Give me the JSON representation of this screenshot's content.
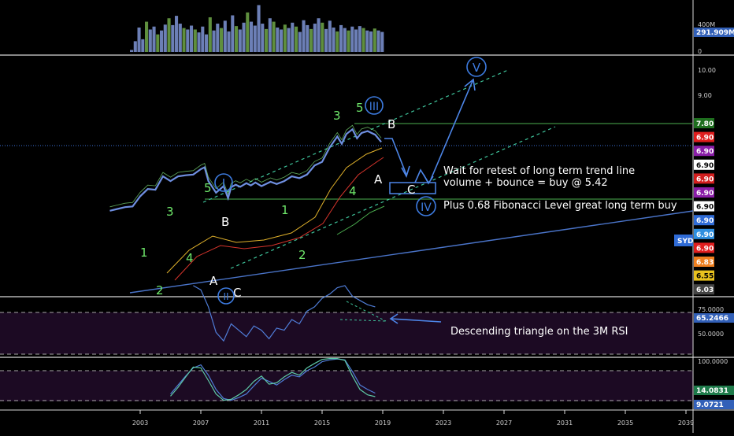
{
  "chart_data": [
    {
      "type": "bar",
      "panel": "volume",
      "scale_labels": [
        "400M",
        "291.909M",
        "0"
      ],
      "current_value_label": "291.909M",
      "values": [
        0.04,
        0.22,
        0.5,
        0.26,
        0.62,
        0.46,
        0.52,
        0.36,
        0.44,
        0.56,
        0.69,
        0.55,
        0.74,
        0.58,
        0.49,
        0.46,
        0.54,
        0.46,
        0.4,
        0.52,
        0.36,
        0.71,
        0.44,
        0.58,
        0.49,
        0.64,
        0.42,
        0.75,
        0.53,
        0.46,
        0.6,
        0.81,
        0.62,
        0.54,
        0.96,
        0.58,
        0.47,
        0.69,
        0.62,
        0.5,
        0.46,
        0.56,
        0.49,
        0.6,
        0.52,
        0.41,
        0.65,
        0.55,
        0.47,
        0.58,
        0.69,
        0.6,
        0.47,
        0.64,
        0.5,
        0.42,
        0.55,
        0.49,
        0.44,
        0.52,
        0.46,
        0.53,
        0.49,
        0.44,
        0.42,
        0.48,
        0.44,
        0.41
      ],
      "colors": [
        "#6c7fb6",
        "#6c7fb6",
        "#6c7fb6",
        "#6c7fb6",
        "#5f8f3e",
        "#6c7fb6",
        "#6c7fb6",
        "#5f8f3e",
        "#6c7fb6",
        "#6c7fb6",
        "#5f8f3e",
        "#6c7fb6",
        "#6c7fb6",
        "#6c7fb6",
        "#5f8f3e",
        "#6c7fb6",
        "#6c7fb6",
        "#5f8f3e",
        "#6c7fb6",
        "#6c7fb6",
        "#6c7fb6",
        "#5f8f3e",
        "#6c7fb6",
        "#6c7fb6",
        "#5f8f3e",
        "#6c7fb6",
        "#6c7fb6",
        "#6c7fb6",
        "#5f8f3e",
        "#6c7fb6",
        "#6c7fb6",
        "#5f8f3e",
        "#6c7fb6",
        "#6c7fb6",
        "#6c7fb6",
        "#6c7fb6",
        "#5f8f3e",
        "#6c7fb6",
        "#5f8f3e",
        "#6c7fb6",
        "#6c7fb6",
        "#5f8f3e",
        "#6c7fb6",
        "#6c7fb6",
        "#5f8f3e",
        "#6c7fb6",
        "#6c7fb6",
        "#6c7fb6",
        "#5f8f3e",
        "#6c7fb6",
        "#6c7fb6",
        "#5f8f3e",
        "#6c7fb6",
        "#6c7fb6",
        "#6c7fb6",
        "#5f8f3e",
        "#6c7fb6",
        "#6c7fb6",
        "#5f8f3e",
        "#6c7fb6",
        "#6c7fb6",
        "#6c7fb6",
        "#5f8f3e",
        "#6c7fb6",
        "#6c7fb6",
        "#5f8f3e",
        "#6c7fb6",
        "#6c7fb6"
      ]
    },
    {
      "type": "line",
      "panel": "price",
      "x_unit": "year",
      "x": [
        2001.0,
        2001.5,
        2002.0,
        2002.5,
        2003.0,
        2003.5,
        2004.0,
        2004.5,
        2005.0,
        2005.5,
        2006.0,
        2006.5,
        2007.0,
        2007.25,
        2007.5,
        2008.0,
        2008.5,
        2008.8,
        2009.0,
        2009.3,
        2009.6,
        2010.0,
        2010.3,
        2010.6,
        2011.0,
        2011.3,
        2011.6,
        2012.0,
        2012.5,
        2013.0,
        2013.5,
        2014.0,
        2014.5,
        2015.0,
        2015.5,
        2016.0,
        2016.3,
        2016.6,
        2017.0,
        2017.3,
        2017.6,
        2018.0,
        2018.5,
        2018.9
      ],
      "y": [
        5.1,
        5.15,
        5.2,
        5.22,
        5.5,
        5.7,
        5.68,
        6.05,
        5.92,
        6.05,
        6.08,
        6.1,
        6.25,
        6.3,
        5.92,
        5.6,
        5.78,
        5.45,
        5.75,
        5.82,
        5.76,
        5.86,
        5.8,
        5.88,
        5.78,
        5.84,
        5.9,
        5.84,
        5.92,
        6.05,
        6.0,
        6.1,
        6.35,
        6.45,
        6.85,
        7.15,
        6.95,
        7.22,
        7.35,
        7.1,
        7.25,
        7.3,
        7.2,
        7.0
      ],
      "y_tick_labels": [
        "10.00",
        "9.00",
        "7.80",
        "6.90",
        "6.90",
        "6.90",
        "6.90",
        "6.90",
        "6.90",
        "6.90",
        "6.90",
        "6.90",
        "6.83",
        "6.55",
        "6.03"
      ],
      "price_badge_colors": [
        "#1e6e1e",
        "#e01e1e",
        "#8a1ea8",
        "#ffffff",
        "#d21e1e",
        "#8a1ea8",
        "#ffffff",
        "#2f6bd6",
        "#2f8fe0",
        "#e01e1e",
        "#ef7f1f",
        "#e8c21f"
      ],
      "symbol_badge": "SYD",
      "annotations": {
        "wave_green": [
          "1",
          "2",
          "3",
          "4",
          "5",
          "1",
          "2",
          "3",
          "4",
          "5"
        ],
        "wave_white": [
          "A",
          "B",
          "C",
          "A",
          "B",
          "C"
        ],
        "wave_circled": [
          "I",
          "II",
          "III",
          "IV",
          "V"
        ],
        "notes": [
          "Wait for retest of long term trend line",
          "volume + bounce = buy @ 5.42",
          "Plus 0.68 Fibonacci Level great long term buy"
        ]
      }
    },
    {
      "type": "line",
      "panel": "rsi",
      "x_unit": "year",
      "x": [
        2006.5,
        2007.0,
        2007.5,
        2008.0,
        2008.5,
        2009.0,
        2009.5,
        2010.0,
        2010.5,
        2011.0,
        2011.5,
        2012.0,
        2012.5,
        2013.0,
        2013.5,
        2014.0,
        2014.5,
        2015.0,
        2015.5,
        2016.0,
        2016.5,
        2017.0,
        2017.5,
        2018.0,
        2018.5
      ],
      "y": [
        78,
        76,
        68,
        56,
        52,
        60,
        57,
        54,
        59,
        57,
        53,
        58,
        57,
        62,
        60,
        66,
        68,
        72,
        74,
        77,
        78,
        73,
        71,
        69,
        68
      ],
      "y_tick_labels": [
        "75.0000",
        "65.2466",
        "50.0000"
      ],
      "annotation": "Descending triangle on the 3M RSI"
    },
    {
      "type": "line",
      "panel": "stochastic",
      "x_unit": "year",
      "x": [
        2005.0,
        2005.5,
        2006.0,
        2006.5,
        2007.0,
        2007.5,
        2008.0,
        2008.5,
        2009.0,
        2009.5,
        2010.0,
        2010.5,
        2011.0,
        2011.5,
        2012.0,
        2012.5,
        2013.0,
        2013.5,
        2014.0,
        2014.5,
        2015.0,
        2015.5,
        2016.0,
        2016.5,
        2017.0,
        2017.5,
        2018.0,
        2018.5
      ],
      "series": [
        {
          "values": [
            20,
            40,
            60,
            78,
            85,
            62,
            30,
            10,
            6,
            12,
            20,
            38,
            55,
            48,
            40,
            52,
            62,
            58,
            72,
            80,
            92,
            96,
            98,
            96,
            70,
            40,
            30,
            22
          ]
        },
        {
          "values": [
            15,
            35,
            58,
            80,
            78,
            50,
            20,
            6,
            8,
            18,
            30,
            48,
            60,
            42,
            45,
            58,
            68,
            62,
            78,
            88,
            97,
            99,
            99,
            95,
            60,
            30,
            18,
            14
          ]
        }
      ],
      "y_tick_labels": [
        "100.0000",
        "14.0831",
        "9.0721"
      ]
    }
  ],
  "x_axis": {
    "ticks": [
      "2003",
      "2007",
      "2011",
      "2015",
      "2019",
      "2023",
      "2027",
      "2031",
      "2035",
      "2039"
    ]
  }
}
